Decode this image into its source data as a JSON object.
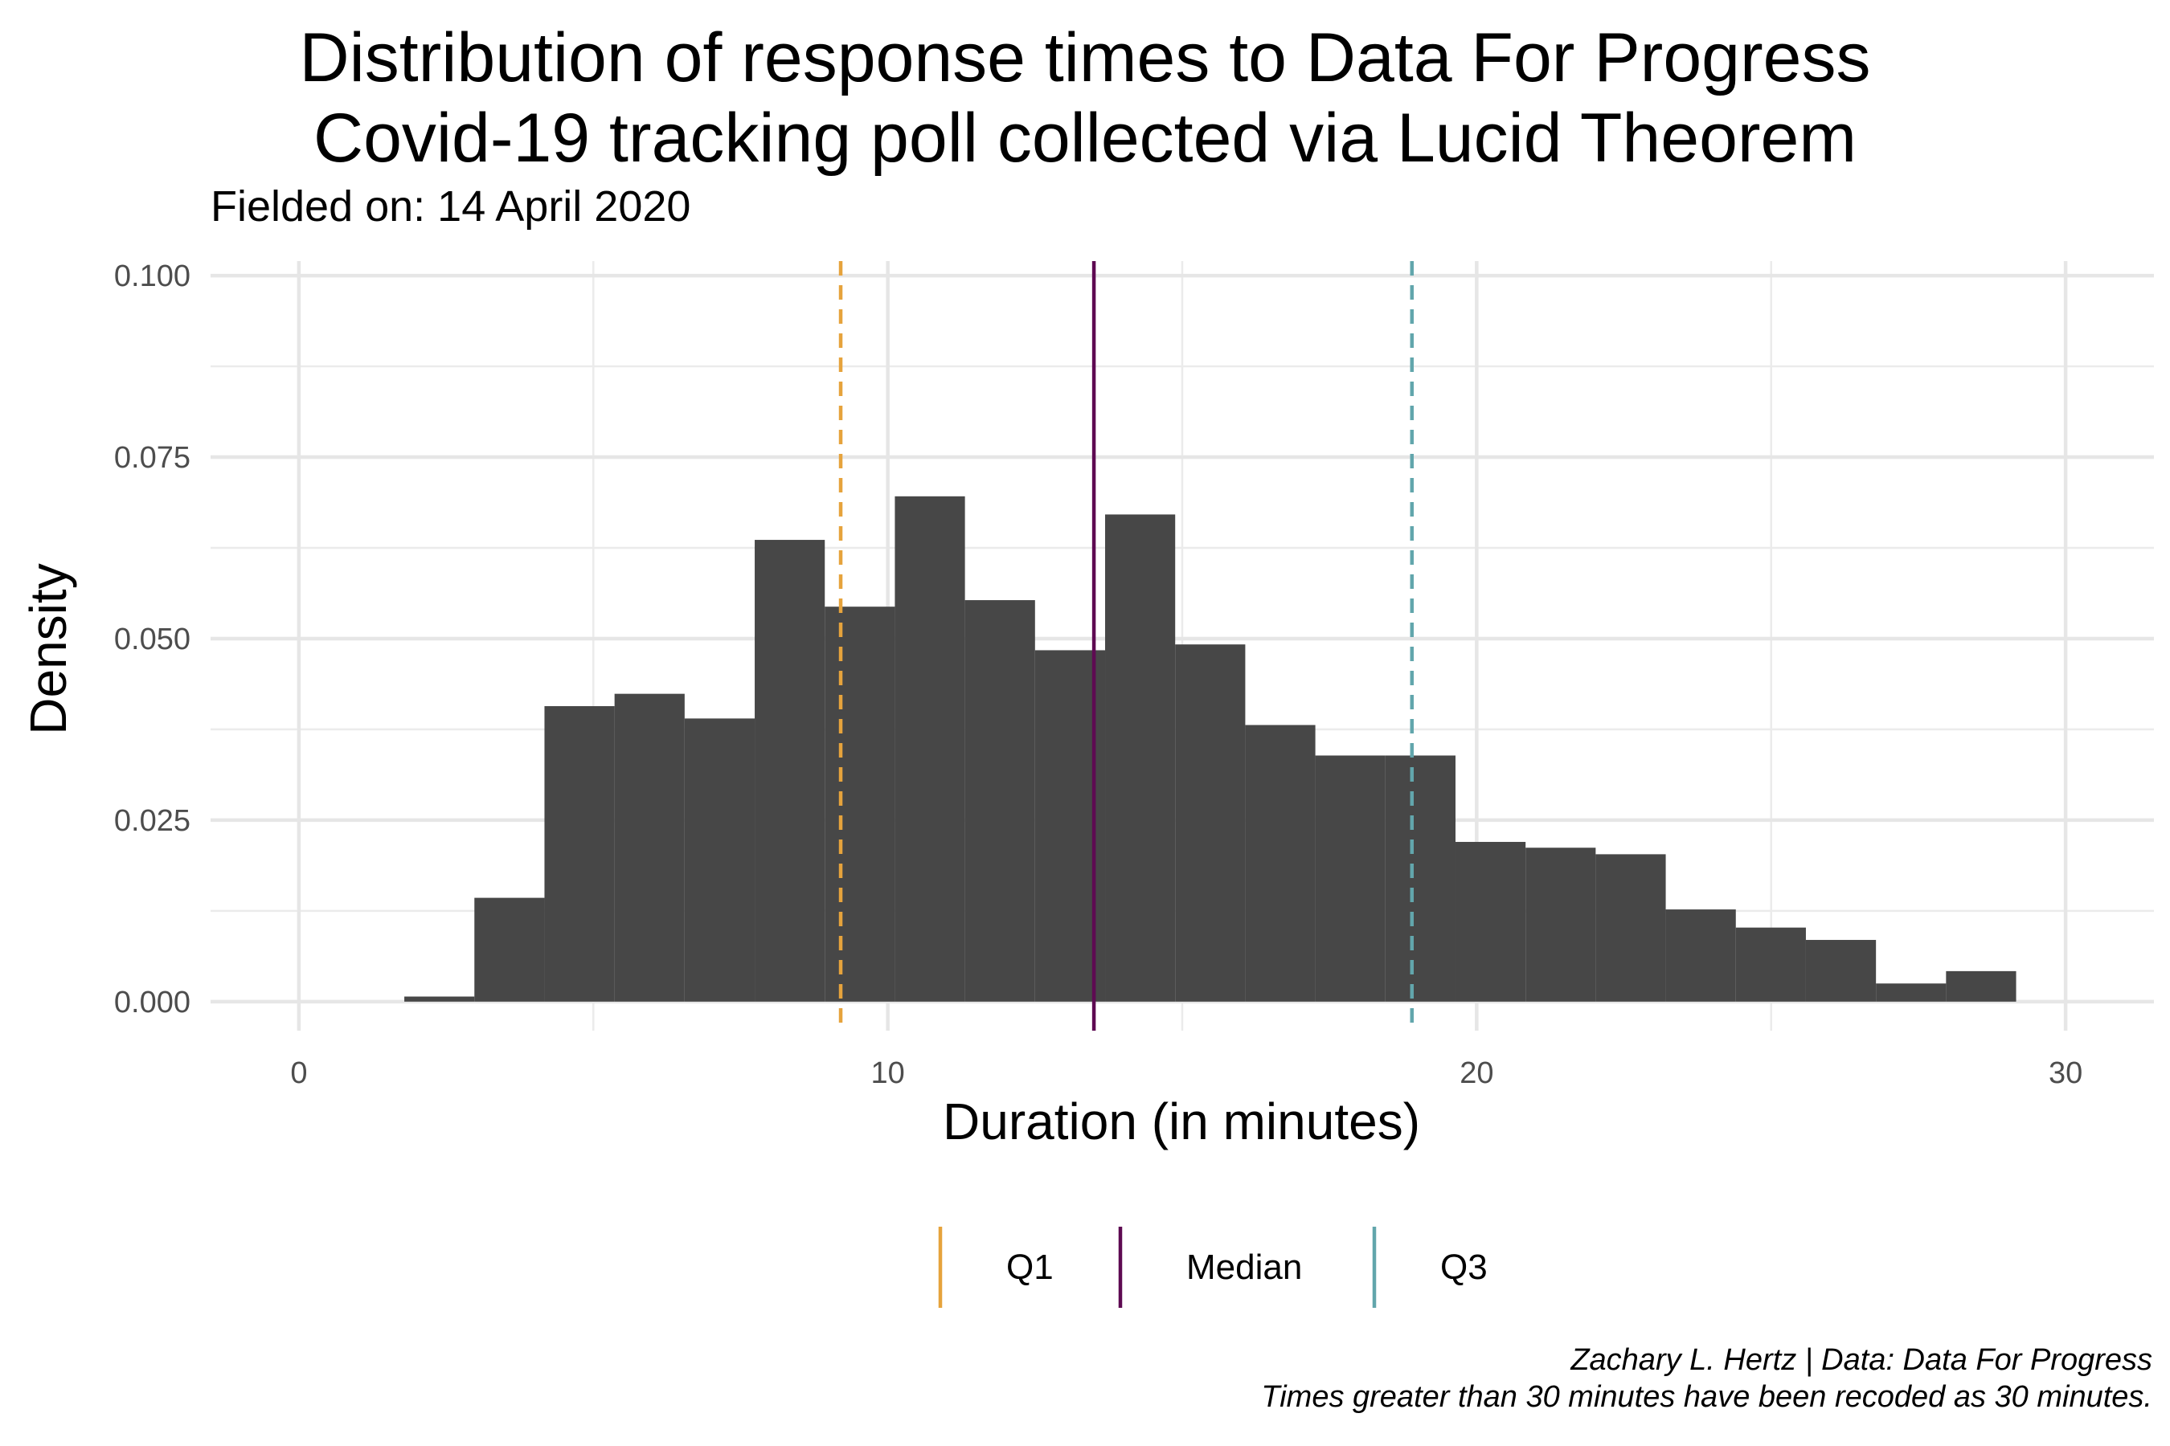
{
  "title_line1": "Distribution of response times to Data For Progress",
  "title_line2": "Covid-19 tracking poll collected via Lucid Theorem",
  "subtitle": "Fielded on: 14 April 2020",
  "caption_line1": "Zachary L. Hertz | Data: Data For Progress",
  "caption_line2": "Times greater than 30 minutes have been recoded as 30 minutes.",
  "chart_data": {
    "type": "bar",
    "subtype": "histogram",
    "xlabel": "Duration (in minutes)",
    "ylabel": "Density",
    "xlim": [
      -1.5,
      31.5
    ],
    "ylim": [
      -0.004,
      0.102
    ],
    "x_ticks": [
      0,
      10,
      20,
      30
    ],
    "x_tick_labels": [
      "0",
      "10",
      "20",
      "30"
    ],
    "y_ticks": [
      0.0,
      0.025,
      0.05,
      0.075,
      0.1
    ],
    "y_tick_labels": [
      "0.000",
      "0.025",
      "0.050",
      "0.075",
      "0.100"
    ],
    "grid": true,
    "bar_color": "#474747",
    "bins": [
      {
        "x0": 1.79,
        "x1": 2.98,
        "density": 0.0007
      },
      {
        "x0": 2.98,
        "x1": 4.17,
        "density": 0.0143
      },
      {
        "x0": 4.17,
        "x1": 5.36,
        "density": 0.0407
      },
      {
        "x0": 5.36,
        "x1": 6.55,
        "density": 0.0424
      },
      {
        "x0": 6.55,
        "x1": 7.74,
        "density": 0.039
      },
      {
        "x0": 7.74,
        "x1": 8.93,
        "density": 0.0636
      },
      {
        "x0": 8.93,
        "x1": 10.12,
        "density": 0.0544
      },
      {
        "x0": 10.12,
        "x1": 11.31,
        "density": 0.0696
      },
      {
        "x0": 11.31,
        "x1": 12.5,
        "density": 0.0553
      },
      {
        "x0": 12.5,
        "x1": 13.69,
        "density": 0.0484
      },
      {
        "x0": 13.69,
        "x1": 14.88,
        "density": 0.0671
      },
      {
        "x0": 14.88,
        "x1": 16.07,
        "density": 0.0492
      },
      {
        "x0": 16.07,
        "x1": 17.26,
        "density": 0.0381
      },
      {
        "x0": 17.26,
        "x1": 18.45,
        "density": 0.0339
      },
      {
        "x0": 18.45,
        "x1": 19.64,
        "density": 0.0339
      },
      {
        "x0": 19.64,
        "x1": 20.83,
        "density": 0.022
      },
      {
        "x0": 20.83,
        "x1": 22.02,
        "density": 0.0212
      },
      {
        "x0": 22.02,
        "x1": 23.21,
        "density": 0.0203
      },
      {
        "x0": 23.21,
        "x1": 24.4,
        "density": 0.0127
      },
      {
        "x0": 24.4,
        "x1": 25.59,
        "density": 0.0102
      },
      {
        "x0": 25.59,
        "x1": 26.78,
        "density": 0.0085
      },
      {
        "x0": 26.78,
        "x1": 27.97,
        "density": 0.0025
      },
      {
        "x0": 27.97,
        "x1": 29.16,
        "density": 0.0042
      }
    ],
    "reference_lines": [
      {
        "name": "Q1",
        "x": 9.2,
        "color": "#E6A33C",
        "style": "dashed"
      },
      {
        "name": "Median",
        "x": 13.5,
        "color": "#5E0A52",
        "style": "solid"
      },
      {
        "name": "Q3",
        "x": 18.9,
        "color": "#62A6AC",
        "style": "dashed"
      }
    ],
    "legend_position": "bottom"
  }
}
